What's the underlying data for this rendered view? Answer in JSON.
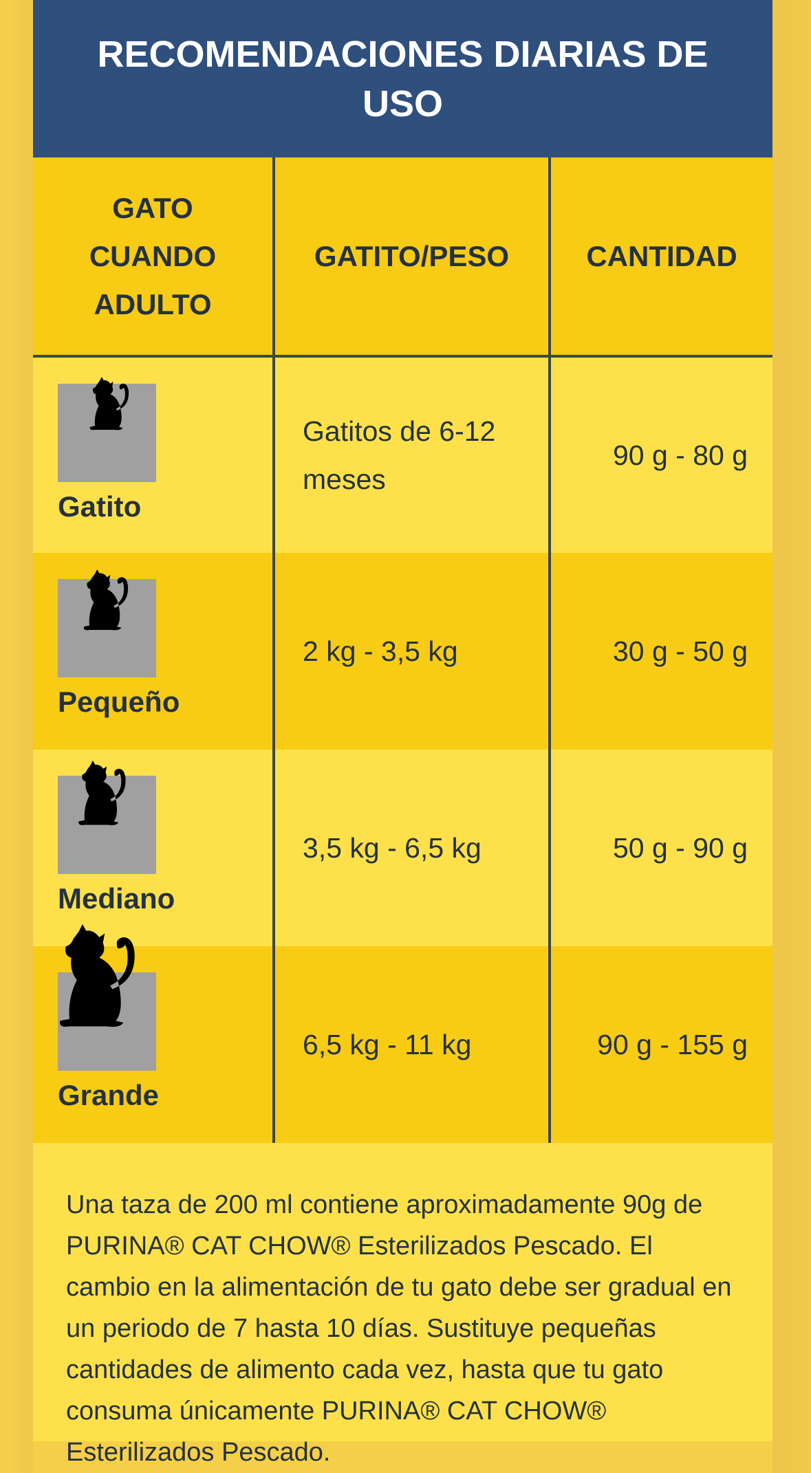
{
  "title": "RECOMENDACIONES DIARIAS DE USO",
  "table": {
    "headers": [
      "GATO CUANDO ADULTO",
      "GATITO/PESO",
      "CANTIDAD"
    ],
    "rows": [
      {
        "type": "Gatito",
        "weight": "Gatitos de 6-12 meses",
        "amount": "90 g - 80 g",
        "icon": "cat-kitten-icon"
      },
      {
        "type": "Pequeño",
        "weight": "2 kg - 3,5 kg",
        "amount": "30 g - 50 g",
        "icon": "cat-small-icon"
      },
      {
        "type": "Mediano",
        "weight": "3,5 kg - 6,5 kg",
        "amount": "50 g - 90 g",
        "icon": "cat-medium-icon"
      },
      {
        "type": "Grande",
        "weight": "6,5 kg - 11 kg",
        "amount": "90 g - 155 g",
        "icon": "cat-large-icon"
      }
    ]
  },
  "note": "Una taza de 200 ml contiene aproximadamente 90g de PURINA® CAT CHOW® Esterilizados Pescado. El cambio en la alimentación de tu gato debe ser gradual en un periodo de 7 hasta 10 días. Sustituye pequeñas cantidades de alimento cada vez, hasta que tu gato consuma únicamente PURINA® CAT CHOW® Esterilizados Pescado.",
  "colors": {
    "header_bg": "#2f4f7d",
    "row_dark": "#f8cc14",
    "row_light": "#fee14a",
    "text": "#25313f"
  }
}
